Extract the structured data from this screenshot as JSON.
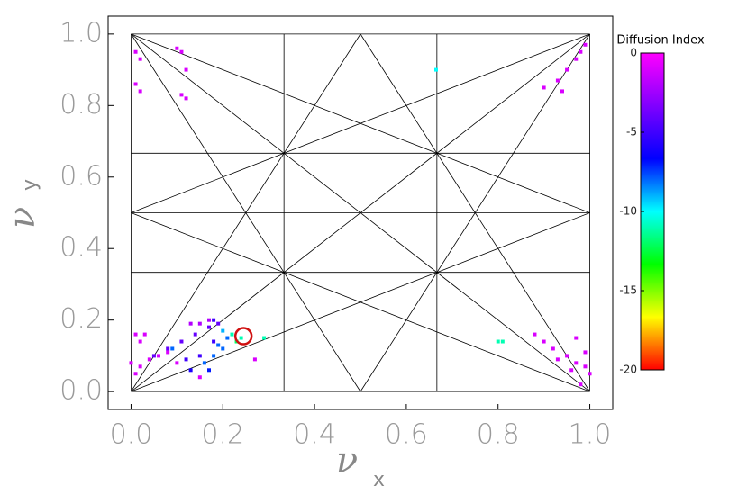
{
  "chart_data": {
    "type": "scatter",
    "x_label": {
      "main": "ν",
      "sub": "x"
    },
    "y_label": {
      "main": "ν",
      "sub": "y"
    },
    "xlim": [
      -0.05,
      1.05
    ],
    "ylim": [
      -0.05,
      1.05
    ],
    "xticks": [
      {
        "value": 0,
        "label": "0.0"
      },
      {
        "value": 0.2,
        "label": "0.2"
      },
      {
        "value": 0.4,
        "label": "0.4"
      },
      {
        "value": 0.6,
        "label": "0.6"
      },
      {
        "value": 0.8,
        "label": "0.8"
      },
      {
        "value": 1,
        "label": "1.0"
      }
    ],
    "yticks": [
      {
        "value": 0,
        "label": "0.0"
      },
      {
        "value": 0.2,
        "label": "0.2"
      },
      {
        "value": 0.4,
        "label": "0.4"
      },
      {
        "value": 0.6,
        "label": "0.6"
      },
      {
        "value": 0.8,
        "label": "0.8"
      },
      {
        "value": 1,
        "label": "1.0"
      }
    ],
    "colorbar": {
      "title": "Diffusion Index",
      "clim": [
        -20,
        0
      ],
      "ticks": [
        0,
        -5,
        -10,
        -15,
        -20
      ],
      "colormap": [
        "#ff00ff",
        "#8000ff",
        "#0000ff",
        "#00ffff",
        "#00ff00",
        "#ffff00",
        "#ff0000"
      ]
    },
    "marker": {
      "x": 0.245,
      "y": 0.155,
      "color": "#d01010"
    },
    "series": [
      {
        "x": [
          0.01,
          0.02,
          0.01,
          0.02,
          0.1,
          0.11,
          0.12,
          0.11,
          0.12,
          0.9,
          0.93,
          0.95,
          0.97,
          0.98,
          0.99,
          0.94,
          0.665,
          0.01,
          0.03,
          0.02,
          0.0,
          0.02,
          0.04,
          0.06,
          0.08,
          0.01,
          0.1,
          0.13,
          0.15,
          0.17,
          0.05,
          0.08,
          0.11,
          0.14,
          0.17,
          0.19,
          0.18,
          0.12,
          0.15,
          0.18,
          0.13,
          0.16,
          0.18,
          0.2,
          0.17,
          0.21,
          0.19,
          0.2,
          0.09,
          0.22,
          0.23,
          0.24,
          0.29,
          0.8,
          0.81,
          0.27,
          0.15,
          0.88,
          0.9,
          0.92,
          0.95,
          0.97,
          0.99,
          1.0,
          0.96,
          0.98,
          0.93,
          0.97,
          0.99
        ],
        "y": [
          0.95,
          0.93,
          0.86,
          0.84,
          0.96,
          0.95,
          0.9,
          0.83,
          0.82,
          0.85,
          0.87,
          0.9,
          0.93,
          0.95,
          0.97,
          0.84,
          0.9,
          0.16,
          0.16,
          0.14,
          0.08,
          0.07,
          0.09,
          0.1,
          0.11,
          0.05,
          0.08,
          0.19,
          0.19,
          0.2,
          0.1,
          0.12,
          0.14,
          0.16,
          0.18,
          0.19,
          0.2,
          0.09,
          0.1,
          0.14,
          0.06,
          0.08,
          0.1,
          0.12,
          0.06,
          0.15,
          0.13,
          0.17,
          0.12,
          0.16,
          0.14,
          0.15,
          0.15,
          0.14,
          0.14,
          0.09,
          0.04,
          0.16,
          0.14,
          0.12,
          0.1,
          0.08,
          0.07,
          0.05,
          0.06,
          0.02,
          0.09,
          0.15,
          0.11
        ],
        "c": [
          -1,
          -1,
          -1,
          -1,
          -1,
          -1,
          -1,
          -1,
          -1,
          -1,
          -1,
          -1,
          -1,
          -1,
          -1,
          -1,
          -10,
          -1,
          -1,
          -1,
          -1,
          -1,
          -1,
          -1,
          -1,
          -1,
          -1,
          -2,
          -2,
          -2,
          -4,
          -4,
          -4,
          -4,
          -4,
          -4,
          -5,
          -5,
          -5,
          -5,
          -6,
          -8,
          -8,
          -8,
          -7,
          -8,
          -8,
          -9,
          -8,
          -11,
          -12,
          -11,
          -11,
          -11,
          -11,
          -1,
          -1,
          -1,
          -1,
          -1,
          -1,
          -1,
          -1,
          -1,
          -1,
          -1,
          -1,
          -1,
          -1
        ]
      }
    ]
  }
}
